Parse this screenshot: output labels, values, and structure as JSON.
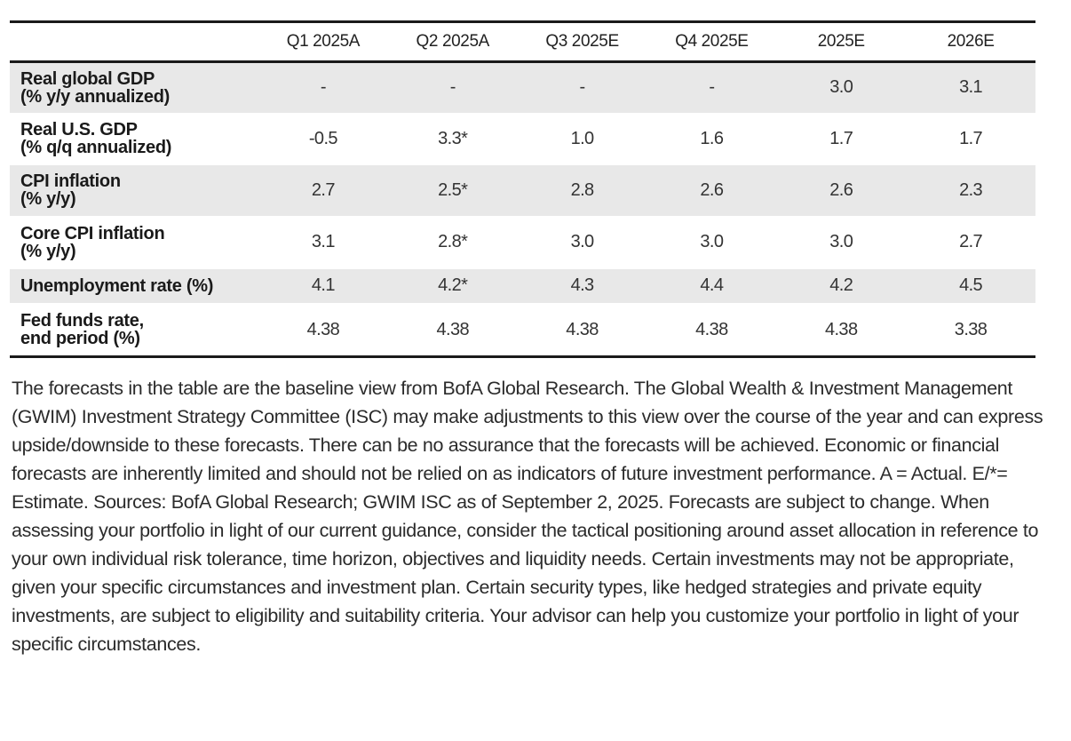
{
  "chart_data": {
    "type": "table",
    "columns": [
      "Q1 2025A",
      "Q2 2025A",
      "Q3 2025E",
      "Q4 2025E",
      "2025E",
      "2026E"
    ],
    "rows": [
      {
        "label_line1": "Real global GDP",
        "label_line2": "(% y/y annualized)",
        "values": [
          "-",
          "-",
          "-",
          "-",
          "3.0",
          "3.1"
        ]
      },
      {
        "label_line1": "Real U.S. GDP",
        "label_line2": "(% q/q annualized)",
        "values": [
          "-0.5",
          "3.3*",
          "1.0",
          "1.6",
          "1.7",
          "1.7"
        ]
      },
      {
        "label_line1": "CPI inflation",
        "label_line2": "(% y/y)",
        "values": [
          "2.7",
          "2.5*",
          "2.8",
          "2.6",
          "2.6",
          "2.3"
        ]
      },
      {
        "label_line1": "Core CPI inflation",
        "label_line2": "(% y/y)",
        "values": [
          "3.1",
          "2.8*",
          "3.0",
          "3.0",
          "3.0",
          "2.7"
        ]
      },
      {
        "label_line1": "Unemployment rate (%)",
        "label_line2": "",
        "values": [
          "4.1",
          "4.2*",
          "4.3",
          "4.4",
          "4.2",
          "4.5"
        ]
      },
      {
        "label_line1": "Fed funds rate,",
        "label_line2": "end period (%)",
        "values": [
          "4.38",
          "4.38",
          "4.38",
          "4.38",
          "4.38",
          "3.38"
        ]
      }
    ]
  },
  "footnote": "The forecasts in the table are the baseline view from BofA Global Research. The Global Wealth & Investment Management (GWIM) Investment Strategy Committee (ISC) may make adjustments to this view over the course of the year and can express upside/downside to these forecasts. There can be no assurance that the forecasts will be achieved. Economic or financial forecasts are inherently limited and should not be relied on as indicators of future investment performance. A = Actual.   E/*= Estimate. Sources: BofA Global Research; GWIM ISC as of September 2, 2025. Forecasts are subject to change. When assessing your portfolio in light of our current guidance, consider the tactical positioning around asset allocation in reference to your own individual risk tolerance, time horizon, objectives and liquidity needs. Certain investments may not be appropriate, given your specific circumstances and investment plan. Certain security types, like hedged strategies and private equity investments, are subject to eligibility and suitability criteria. Your advisor can help you customize your portfolio in light of your specific circumstances."
}
